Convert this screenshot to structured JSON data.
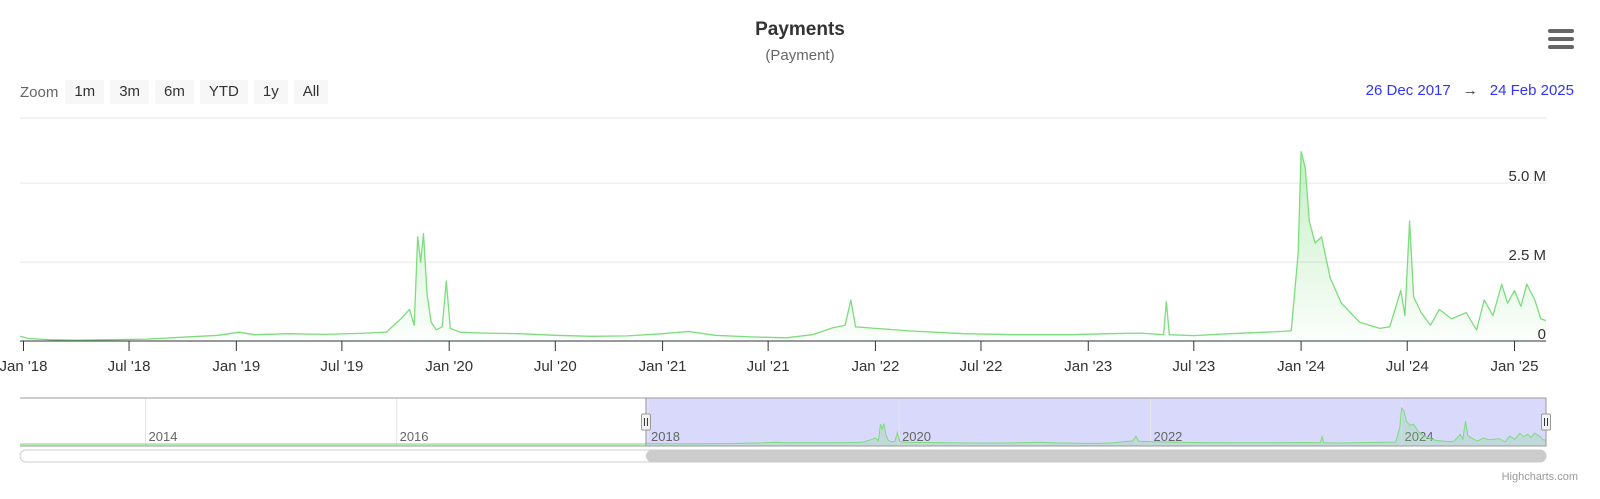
{
  "header": {
    "title": "Payments",
    "subtitle": "(Payment)"
  },
  "toolbar": {
    "zoom_label": "Zoom",
    "zoom_buttons": [
      "1m",
      "3m",
      "6m",
      "YTD",
      "1y",
      "All"
    ],
    "range_from": "26 Dec 2017",
    "range_arrow": "→",
    "range_to": "24 Feb 2025",
    "menu_icon": "hamburger-menu-icon"
  },
  "credits": "Highcharts.com",
  "colors": {
    "series": "#7ddc7d",
    "navigator_mask": "#d9d9fb",
    "range_text": "#3333ff"
  },
  "chart_data": {
    "type": "area",
    "title": "Payments",
    "subtitle": "(Payment)",
    "x_range": [
      "2017-12-26",
      "2025-02-24"
    ],
    "ylim": [
      0,
      7000000
    ],
    "y_ticks": [
      {
        "value": 0,
        "label": "0"
      },
      {
        "value": 2500000,
        "label": "2.5 M"
      },
      {
        "value": 5000000,
        "label": "5.0 M"
      }
    ],
    "x_ticks": [
      {
        "date": "2018-01-01",
        "label": "Jan '18"
      },
      {
        "date": "2018-07-01",
        "label": "Jul '18"
      },
      {
        "date": "2019-01-01",
        "label": "Jan '19"
      },
      {
        "date": "2019-07-01",
        "label": "Jul '19"
      },
      {
        "date": "2020-01-01",
        "label": "Jan '20"
      },
      {
        "date": "2020-07-01",
        "label": "Jul '20"
      },
      {
        "date": "2021-01-01",
        "label": "Jan '21"
      },
      {
        "date": "2021-07-01",
        "label": "Jul '21"
      },
      {
        "date": "2022-01-01",
        "label": "Jan '22"
      },
      {
        "date": "2022-07-01",
        "label": "Jul '22"
      },
      {
        "date": "2023-01-01",
        "label": "Jan '23"
      },
      {
        "date": "2023-07-01",
        "label": "Jul '23"
      },
      {
        "date": "2024-01-01",
        "label": "Jan '24"
      },
      {
        "date": "2024-07-01",
        "label": "Jul '24"
      },
      {
        "date": "2025-01-01",
        "label": "Jan '25"
      }
    ],
    "grid": true,
    "series": [
      {
        "points": [
          [
            "2017-12-26",
            150000
          ],
          [
            "2018-01-10",
            80000
          ],
          [
            "2018-02-15",
            40000
          ],
          [
            "2018-04-01",
            30000
          ],
          [
            "2018-06-01",
            40000
          ],
          [
            "2018-08-01",
            60000
          ],
          [
            "2018-10-01",
            120000
          ],
          [
            "2018-12-01",
            180000
          ],
          [
            "2019-01-05",
            280000
          ],
          [
            "2019-02-01",
            200000
          ],
          [
            "2019-04-01",
            230000
          ],
          [
            "2019-06-01",
            210000
          ],
          [
            "2019-08-01",
            240000
          ],
          [
            "2019-09-15",
            280000
          ],
          [
            "2019-10-10",
            700000
          ],
          [
            "2019-10-25",
            1000000
          ],
          [
            "2019-11-02",
            500000
          ],
          [
            "2019-11-08",
            3300000
          ],
          [
            "2019-11-13",
            2500000
          ],
          [
            "2019-11-18",
            3400000
          ],
          [
            "2019-11-24",
            1500000
          ],
          [
            "2019-12-01",
            600000
          ],
          [
            "2019-12-10",
            350000
          ],
          [
            "2019-12-20",
            450000
          ],
          [
            "2019-12-27",
            1900000
          ],
          [
            "2020-01-03",
            400000
          ],
          [
            "2020-01-20",
            280000
          ],
          [
            "2020-03-01",
            250000
          ],
          [
            "2020-05-01",
            230000
          ],
          [
            "2020-07-01",
            180000
          ],
          [
            "2020-09-01",
            150000
          ],
          [
            "2020-11-01",
            160000
          ],
          [
            "2021-01-01",
            230000
          ],
          [
            "2021-02-15",
            300000
          ],
          [
            "2021-04-01",
            180000
          ],
          [
            "2021-06-01",
            130000
          ],
          [
            "2021-08-01",
            100000
          ],
          [
            "2021-09-15",
            200000
          ],
          [
            "2021-10-20",
            420000
          ],
          [
            "2021-11-10",
            500000
          ],
          [
            "2021-11-20",
            1300000
          ],
          [
            "2021-11-28",
            450000
          ],
          [
            "2022-01-01",
            400000
          ],
          [
            "2022-03-01",
            320000
          ],
          [
            "2022-06-01",
            230000
          ],
          [
            "2022-09-01",
            200000
          ],
          [
            "2022-12-01",
            200000
          ],
          [
            "2023-02-01",
            230000
          ],
          [
            "2023-04-01",
            250000
          ],
          [
            "2023-05-10",
            200000
          ],
          [
            "2023-05-15",
            1250000
          ],
          [
            "2023-05-20",
            200000
          ],
          [
            "2023-07-01",
            170000
          ],
          [
            "2023-09-01",
            230000
          ],
          [
            "2023-11-01",
            280000
          ],
          [
            "2023-12-15",
            320000
          ],
          [
            "2023-12-27",
            2800000
          ],
          [
            "2024-01-01",
            6000000
          ],
          [
            "2024-01-08",
            5500000
          ],
          [
            "2024-01-15",
            3800000
          ],
          [
            "2024-01-25",
            3100000
          ],
          [
            "2024-02-05",
            3300000
          ],
          [
            "2024-02-20",
            2000000
          ],
          [
            "2024-03-10",
            1200000
          ],
          [
            "2024-04-10",
            600000
          ],
          [
            "2024-05-15",
            400000
          ],
          [
            "2024-06-01",
            450000
          ],
          [
            "2024-06-20",
            1600000
          ],
          [
            "2024-06-27",
            800000
          ],
          [
            "2024-07-05",
            3800000
          ],
          [
            "2024-07-12",
            1400000
          ],
          [
            "2024-07-25",
            900000
          ],
          [
            "2024-08-10",
            500000
          ],
          [
            "2024-08-25",
            1000000
          ],
          [
            "2024-09-15",
            700000
          ],
          [
            "2024-10-10",
            900000
          ],
          [
            "2024-10-28",
            350000
          ],
          [
            "2024-11-10",
            1300000
          ],
          [
            "2024-11-25",
            800000
          ],
          [
            "2024-12-10",
            1800000
          ],
          [
            "2024-12-20",
            1200000
          ],
          [
            "2025-01-01",
            1600000
          ],
          [
            "2025-01-12",
            1100000
          ],
          [
            "2025-01-22",
            1800000
          ],
          [
            "2025-02-05",
            1300000
          ],
          [
            "2025-02-15",
            700000
          ],
          [
            "2025-02-24",
            650000
          ]
        ]
      }
    ]
  },
  "navigator": {
    "full_range": [
      "2013-01-01",
      "2025-02-24"
    ],
    "selected_range": [
      "2017-12-26",
      "2025-02-24"
    ],
    "labels": [
      {
        "date": "2014-01-01",
        "label": "2014"
      },
      {
        "date": "2016-01-01",
        "label": "2016"
      },
      {
        "date": "2018-01-01",
        "label": "2018"
      },
      {
        "date": "2020-01-01",
        "label": "2020"
      },
      {
        "date": "2022-01-01",
        "label": "2022"
      },
      {
        "date": "2024-01-01",
        "label": "2024"
      }
    ]
  }
}
